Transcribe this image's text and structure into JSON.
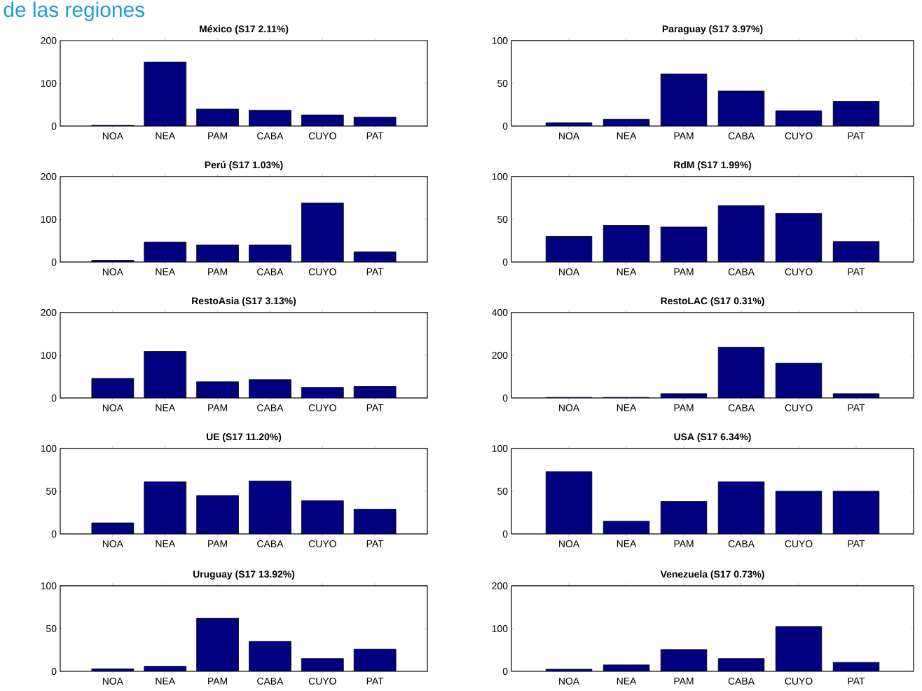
{
  "chart_data": [
    {
      "type": "bar",
      "title": "México (S17 2.11%)",
      "categories": [
        "NOA",
        "NEA",
        "PAM",
        "CABA",
        "CUYO",
        "PAT"
      ],
      "values": [
        2,
        150,
        40,
        37,
        26,
        21
      ],
      "color": "#000080",
      "ylim": [
        0,
        200
      ],
      "yticks": [
        0,
        100,
        200
      ],
      "annotations": [
        "de las regiones"
      ]
    },
    {
      "type": "bar",
      "title": "Paraguay (S17 3.97%)",
      "categories": [
        "NOA",
        "NEA",
        "PAM",
        "CABA",
        "CUYO",
        "PAT"
      ],
      "values": [
        4,
        8,
        61,
        41,
        18,
        29
      ],
      "color": "#000080",
      "ylim": [
        0,
        100
      ],
      "yticks": [
        0,
        50,
        100
      ]
    },
    {
      "type": "bar",
      "title": "Perú (S17 1.03%)",
      "categories": [
        "NOA",
        "NEA",
        "PAM",
        "CABA",
        "CUYO",
        "PAT"
      ],
      "values": [
        4,
        47,
        40,
        40,
        138,
        24
      ],
      "color": "#000080",
      "ylim": [
        0,
        200
      ],
      "yticks": [
        0,
        100,
        200
      ]
    },
    {
      "type": "bar",
      "title": "RdM (S17 1.99%)",
      "categories": [
        "NOA",
        "NEA",
        "PAM",
        "CABA",
        "CUYO",
        "PAT"
      ],
      "values": [
        30,
        43,
        41,
        66,
        57,
        24
      ],
      "color": "#000080",
      "ylim": [
        0,
        100
      ],
      "yticks": [
        0,
        50,
        100
      ]
    },
    {
      "type": "bar",
      "title": "RestoAsia (S17 3.13%)",
      "categories": [
        "NOA",
        "NEA",
        "PAM",
        "CABA",
        "CUYO",
        "PAT"
      ],
      "values": [
        46,
        109,
        38,
        43,
        25,
        27
      ],
      "color": "#000080",
      "ylim": [
        0,
        200
      ],
      "yticks": [
        0,
        100,
        200
      ]
    },
    {
      "type": "bar",
      "title": "RestoLAC (S17 0.31%)",
      "categories": [
        "NOA",
        "NEA",
        "PAM",
        "CABA",
        "CUYO",
        "PAT"
      ],
      "values": [
        3,
        3,
        20,
        238,
        163,
        20
      ],
      "color": "#000080",
      "ylim": [
        0,
        400
      ],
      "yticks": [
        0,
        200,
        400
      ]
    },
    {
      "type": "bar",
      "title": "UE (S17 11.20%)",
      "categories": [
        "NOA",
        "NEA",
        "PAM",
        "CABA",
        "CUYO",
        "PAT"
      ],
      "values": [
        13,
        61,
        45,
        62,
        39,
        29
      ],
      "color": "#000080",
      "ylim": [
        0,
        100
      ],
      "yticks": [
        0,
        50,
        100
      ]
    },
    {
      "type": "bar",
      "title": "USA (S17 6.34%)",
      "categories": [
        "NOA",
        "NEA",
        "PAM",
        "CABA",
        "CUYO",
        "PAT"
      ],
      "values": [
        73,
        15,
        38,
        61,
        50,
        50
      ],
      "color": "#000080",
      "ylim": [
        0,
        100
      ],
      "yticks": [
        0,
        50,
        100
      ]
    },
    {
      "type": "bar",
      "title": "Uruguay (S17 13.92%)",
      "categories": [
        "NOA",
        "NEA",
        "PAM",
        "CABA",
        "CUYO",
        "PAT"
      ],
      "values": [
        3,
        6,
        62,
        35,
        15,
        26
      ],
      "color": "#000080",
      "ylim": [
        0,
        100
      ],
      "yticks": [
        0,
        50,
        100
      ]
    },
    {
      "type": "bar",
      "title": "Venezuela (S17 0.73%)",
      "categories": [
        "NOA",
        "NEA",
        "PAM",
        "CABA",
        "CUYO",
        "PAT"
      ],
      "values": [
        5,
        15,
        51,
        30,
        105,
        21
      ],
      "color": "#000080",
      "ylim": [
        0,
        200
      ],
      "yticks": [
        0,
        100,
        200
      ]
    }
  ]
}
